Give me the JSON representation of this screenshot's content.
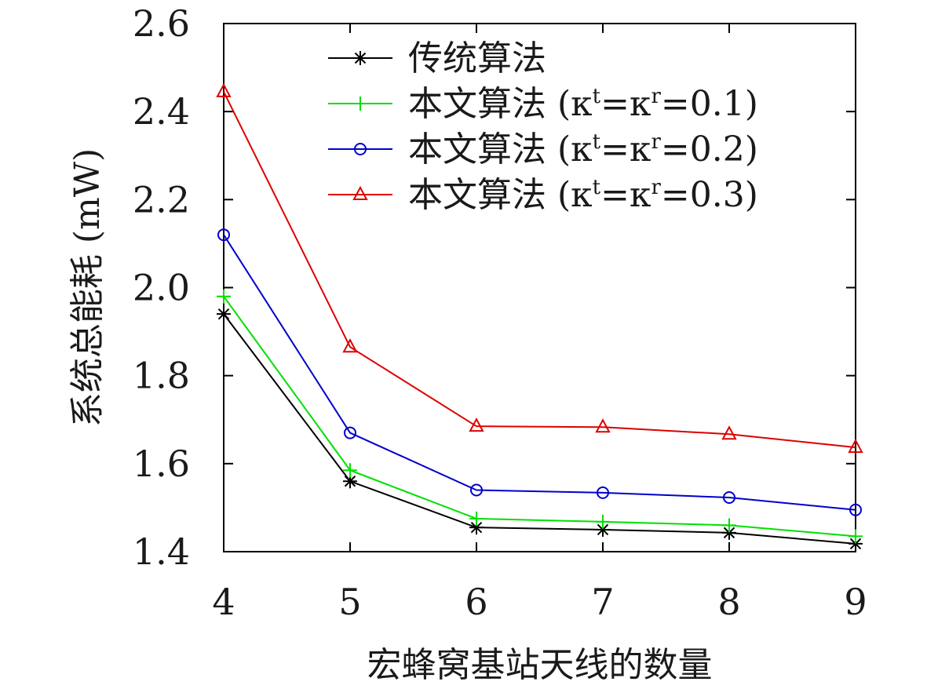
{
  "chart_data": {
    "type": "line",
    "xlabel": "宏蜂窝基站天线的数量",
    "ylabel": "系统总能耗 (mW)",
    "x": [
      4,
      5,
      6,
      7,
      8,
      9
    ],
    "xlim": [
      4,
      9
    ],
    "ylim": [
      1.4,
      2.6
    ],
    "x_ticks": [
      "4",
      "5",
      "6",
      "7",
      "8",
      "9"
    ],
    "y_ticks": [
      "1.4",
      "1.6",
      "1.8",
      "2.0",
      "2.2",
      "2.4",
      "2.6"
    ],
    "grid": false,
    "legend_position": "top-right",
    "series": [
      {
        "name": "传统算法",
        "color": "#000000",
        "marker": "asterisk",
        "legend": {
          "main": "传统算法"
        },
        "values": [
          1.94,
          1.56,
          1.455,
          1.45,
          1.443,
          1.418
        ]
      },
      {
        "name": "本文算法 (κt=κr=0.1)",
        "color": "#00e000",
        "marker": "plus",
        "legend": {
          "main": "本文算法 (κ",
          "sup1": "t",
          "mid": "=κ",
          "sup2": "r",
          "end": "=0.1)"
        },
        "values": [
          1.98,
          1.585,
          1.475,
          1.468,
          1.46,
          1.435
        ]
      },
      {
        "name": "本文算法 (κt=κr=0.2)",
        "color": "#0000cc",
        "marker": "circle",
        "legend": {
          "main": "本文算法 (κ",
          "sup1": "t",
          "mid": "=κ",
          "sup2": "r",
          "end": "=0.2)"
        },
        "values": [
          2.12,
          1.67,
          1.54,
          1.534,
          1.523,
          1.495
        ]
      },
      {
        "name": "本文算法 (κt=κr=0.3)",
        "color": "#dd0000",
        "marker": "triangle",
        "legend": {
          "main": "本文算法 (κ",
          "sup1": "t",
          "mid": "=κ",
          "sup2": "r",
          "end": "=0.3)"
        },
        "values": [
          2.445,
          1.865,
          1.685,
          1.683,
          1.667,
          1.637
        ]
      }
    ]
  }
}
